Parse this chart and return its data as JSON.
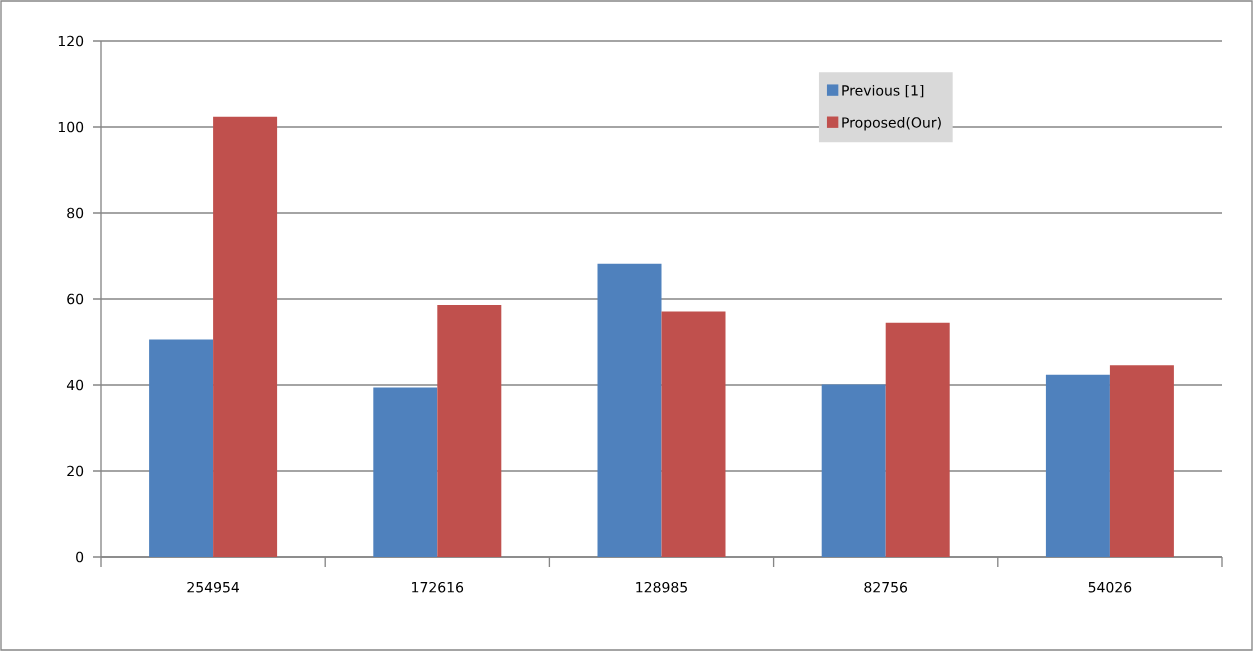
{
  "chart_data": {
    "type": "bar",
    "categories": [
      "254954",
      "172616",
      "128985",
      "82756",
      "54026"
    ],
    "series": [
      {
        "name": "Previous [1]",
        "color": "#4f81bd",
        "values": [
          50.6,
          39.4,
          68.2,
          40.1,
          42.4
        ]
      },
      {
        "name": "Proposed(Our)",
        "color": "#c0504d",
        "values": [
          102.4,
          58.6,
          57.1,
          54.5,
          44.6
        ]
      }
    ],
    "ylim": [
      0,
      120
    ],
    "yticks": [
      0,
      20,
      40,
      60,
      80,
      100,
      120
    ],
    "grid": "y",
    "legend": "top right"
  }
}
